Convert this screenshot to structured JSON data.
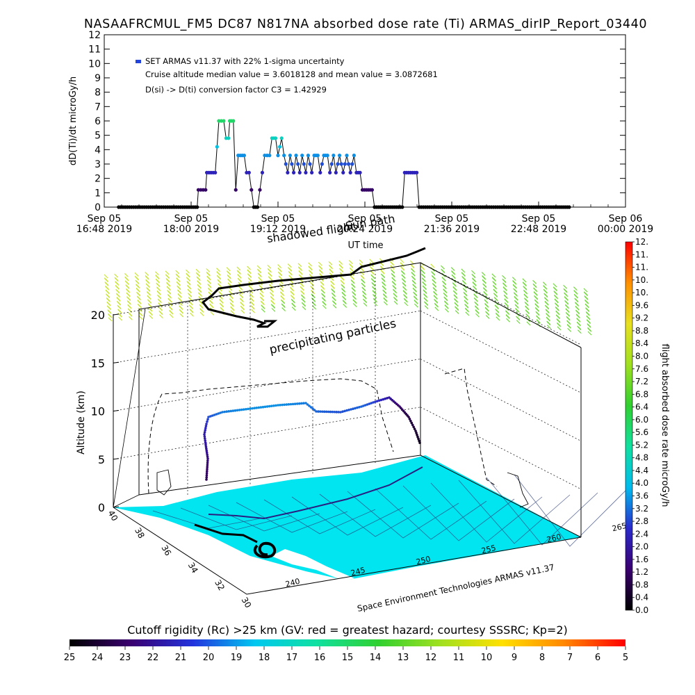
{
  "title": "NASAAFRCMUL_FM5 DC87 N817NA absorbed dose rate (Ti) ARMAS_dirIP_Report_03440",
  "timeseries": {
    "ylabel": "dD(Ti)/dt microGy/h",
    "xlabel": "UT time",
    "legend_label": "SET ARMAS v11.37 with 22% 1-sigma uncertainty",
    "annotations": [
      "Cruise altitude median value = 3.6018128 and mean value = 3.0872681",
      "D(si) -> D(ti) conversion factor C3 = 1.42929"
    ],
    "overlay_labels": [
      "shadowed flight",
      "Sun path"
    ],
    "x_ticks": [
      {
        "l1": "Sep 05",
        "l2": "16:48 2019",
        "min": 1008
      },
      {
        "l1": "Sep 05",
        "l2": "18:00 2019",
        "min": 1080
      },
      {
        "l1": "Sep 05",
        "l2": "19:12 2019",
        "min": 1152
      },
      {
        "l1": "Sep 05",
        "l2": "20:24 2019",
        "min": 1224
      },
      {
        "l1": "Sep 05",
        "l2": "21:36 2019",
        "min": 1296
      },
      {
        "l1": "Sep 05",
        "l2": "22:48 2019",
        "min": 1368
      },
      {
        "l1": "Sep 06",
        "l2": "00:00 2019",
        "min": 1440
      }
    ]
  },
  "chart_data": [
    {
      "type": "line",
      "title": "NASAAFRCMUL_FM5 DC87 N817NA absorbed dose rate (Ti) ARMAS_dirIP_Report_03440",
      "xlabel": "UT time",
      "ylabel": "dD(Ti)/dt microGy/h",
      "ylim": [
        0,
        12
      ],
      "xlim": [
        "2019-09-05 16:48",
        "2019-09-06 00:00"
      ],
      "y_ticks": [
        0,
        1,
        2,
        3,
        4,
        5,
        6,
        7,
        8,
        9,
        10,
        11,
        12
      ],
      "series": [
        {
          "name": "SET ARMAS v11.37 with 22% 1-sigma uncertainty",
          "points": [
            [
              "2019-09-05 17:00",
              0
            ],
            [
              "2019-09-05 17:30",
              0
            ],
            [
              "2019-09-05 18:00",
              0
            ],
            [
              "2019-09-05 18:05",
              0
            ],
            [
              "2019-09-05 18:06",
              1.2
            ],
            [
              "2019-09-05 18:12",
              1.2
            ],
            [
              "2019-09-05 18:13",
              2.4
            ],
            [
              "2019-09-05 18:20",
              2.4
            ],
            [
              "2019-09-05 18:23",
              6.0
            ],
            [
              "2019-09-05 18:27",
              6.0
            ],
            [
              "2019-09-05 18:29",
              4.8
            ],
            [
              "2019-09-05 18:31",
              4.8
            ],
            [
              "2019-09-05 18:32",
              6.0
            ],
            [
              "2019-09-05 18:35",
              6.0
            ],
            [
              "2019-09-05 18:37",
              1.2
            ],
            [
              "2019-09-05 18:39",
              3.6
            ],
            [
              "2019-09-05 18:44",
              3.6
            ],
            [
              "2019-09-05 18:46",
              2.4
            ],
            [
              "2019-09-05 18:48",
              2.4
            ],
            [
              "2019-09-05 18:50",
              1.2
            ],
            [
              "2019-09-05 18:52",
              0
            ],
            [
              "2019-09-05 18:55",
              0
            ],
            [
              "2019-09-05 18:57",
              1.2
            ],
            [
              "2019-09-05 18:59",
              2.4
            ],
            [
              "2019-09-05 19:01",
              3.6
            ],
            [
              "2019-09-05 19:05",
              3.6
            ],
            [
              "2019-09-05 19:07",
              4.8
            ],
            [
              "2019-09-05 19:10",
              4.8
            ],
            [
              "2019-09-05 19:12",
              3.6
            ],
            [
              "2019-09-05 19:15",
              4.8
            ],
            [
              "2019-09-05 19:17",
              3.6
            ],
            [
              "2019-09-05 19:20",
              2.4
            ],
            [
              "2019-09-05 19:22",
              3.6
            ],
            [
              "2019-09-05 19:25",
              2.4
            ],
            [
              "2019-09-05 19:27",
              3.6
            ],
            [
              "2019-09-05 19:30",
              2.4
            ],
            [
              "2019-09-05 19:32",
              3.6
            ],
            [
              "2019-09-05 19:35",
              2.4
            ],
            [
              "2019-09-05 19:37",
              3.6
            ],
            [
              "2019-09-05 19:40",
              2.4
            ],
            [
              "2019-09-05 19:42",
              3.6
            ],
            [
              "2019-09-05 19:45",
              3.6
            ],
            [
              "2019-09-05 19:47",
              2.4
            ],
            [
              "2019-09-05 19:50",
              3.6
            ],
            [
              "2019-09-05 19:53",
              3.6
            ],
            [
              "2019-09-05 19:55",
              2.4
            ],
            [
              "2019-09-05 19:58",
              3.6
            ],
            [
              "2019-09-05 20:00",
              2.4
            ],
            [
              "2019-09-05 20:03",
              3.6
            ],
            [
              "2019-09-05 20:06",
              2.4
            ],
            [
              "2019-09-05 20:09",
              3.6
            ],
            [
              "2019-09-05 20:12",
              2.4
            ],
            [
              "2019-09-05 20:15",
              3.6
            ],
            [
              "2019-09-05 20:17",
              2.4
            ],
            [
              "2019-09-05 20:20",
              2.4
            ],
            [
              "2019-09-05 20:22",
              1.2
            ],
            [
              "2019-09-05 20:30",
              1.2
            ],
            [
              "2019-09-05 20:32",
              0
            ],
            [
              "2019-09-05 20:40",
              0
            ],
            [
              "2019-09-05 20:55",
              0
            ],
            [
              "2019-09-05 20:57",
              2.4
            ],
            [
              "2019-09-05 21:07",
              2.4
            ],
            [
              "2019-09-05 21:09",
              0
            ],
            [
              "2019-09-05 21:30",
              0
            ],
            [
              "2019-09-05 22:00",
              0
            ],
            [
              "2019-09-05 22:30",
              0
            ],
            [
              "2019-09-05 23:00",
              0
            ],
            [
              "2019-09-05 23:15",
              0
            ]
          ]
        }
      ]
    },
    {
      "type": "scatter",
      "title": "",
      "xlabel": "",
      "ylabel": "Altitude (km)",
      "zlim": [
        0,
        20
      ],
      "z_ticks": [
        0,
        5,
        10,
        15,
        20
      ],
      "lat_ticks": [
        40,
        38,
        36,
        34,
        32,
        30
      ],
      "lon_ticks": [
        240,
        245,
        250,
        255,
        260,
        265
      ],
      "annotations": [
        "precipitating particles",
        "Space Environment Technologies ARMAS v11.37"
      ],
      "colorbar": {
        "label": "flight absorbed dose rate microGy/h",
        "ticks": [
          "0.0",
          "0.4",
          "0.8",
          "1.2",
          "1.6",
          "2.0",
          "2.4",
          "2.8",
          "3.2",
          "3.6",
          "4.0",
          "4.4",
          "4.8",
          "5.2",
          "5.6",
          "6.0",
          "6.4",
          "6.8",
          "7.2",
          "7.6",
          "8.0",
          "8.4",
          "8.8",
          "9.2",
          "9.6",
          "10.",
          "10.",
          "11.",
          "11.",
          "12."
        ]
      }
    },
    {
      "type": "heatmap",
      "title": "Cutoff rigidity (Rc) >25 km (GV: red = greatest hazard; courtesy SSSRC; Kp=2)",
      "colorbar_ticks": [
        25,
        24,
        23,
        22,
        21,
        20,
        19,
        18,
        17,
        16,
        15,
        14,
        13,
        12,
        11,
        10,
        9,
        8,
        7,
        6,
        5
      ]
    }
  ],
  "colors": {
    "dose_scale": [
      "#000000",
      "#3a0070",
      "#2a2acc",
      "#00bbee",
      "#10e0a0",
      "#30d030",
      "#a0e020",
      "#e8e020",
      "#ff9000",
      "#ff0000"
    ],
    "ground_map": "#00e5f0",
    "particles_low": "#c8e632",
    "particles_high": "#6fdb3a"
  }
}
